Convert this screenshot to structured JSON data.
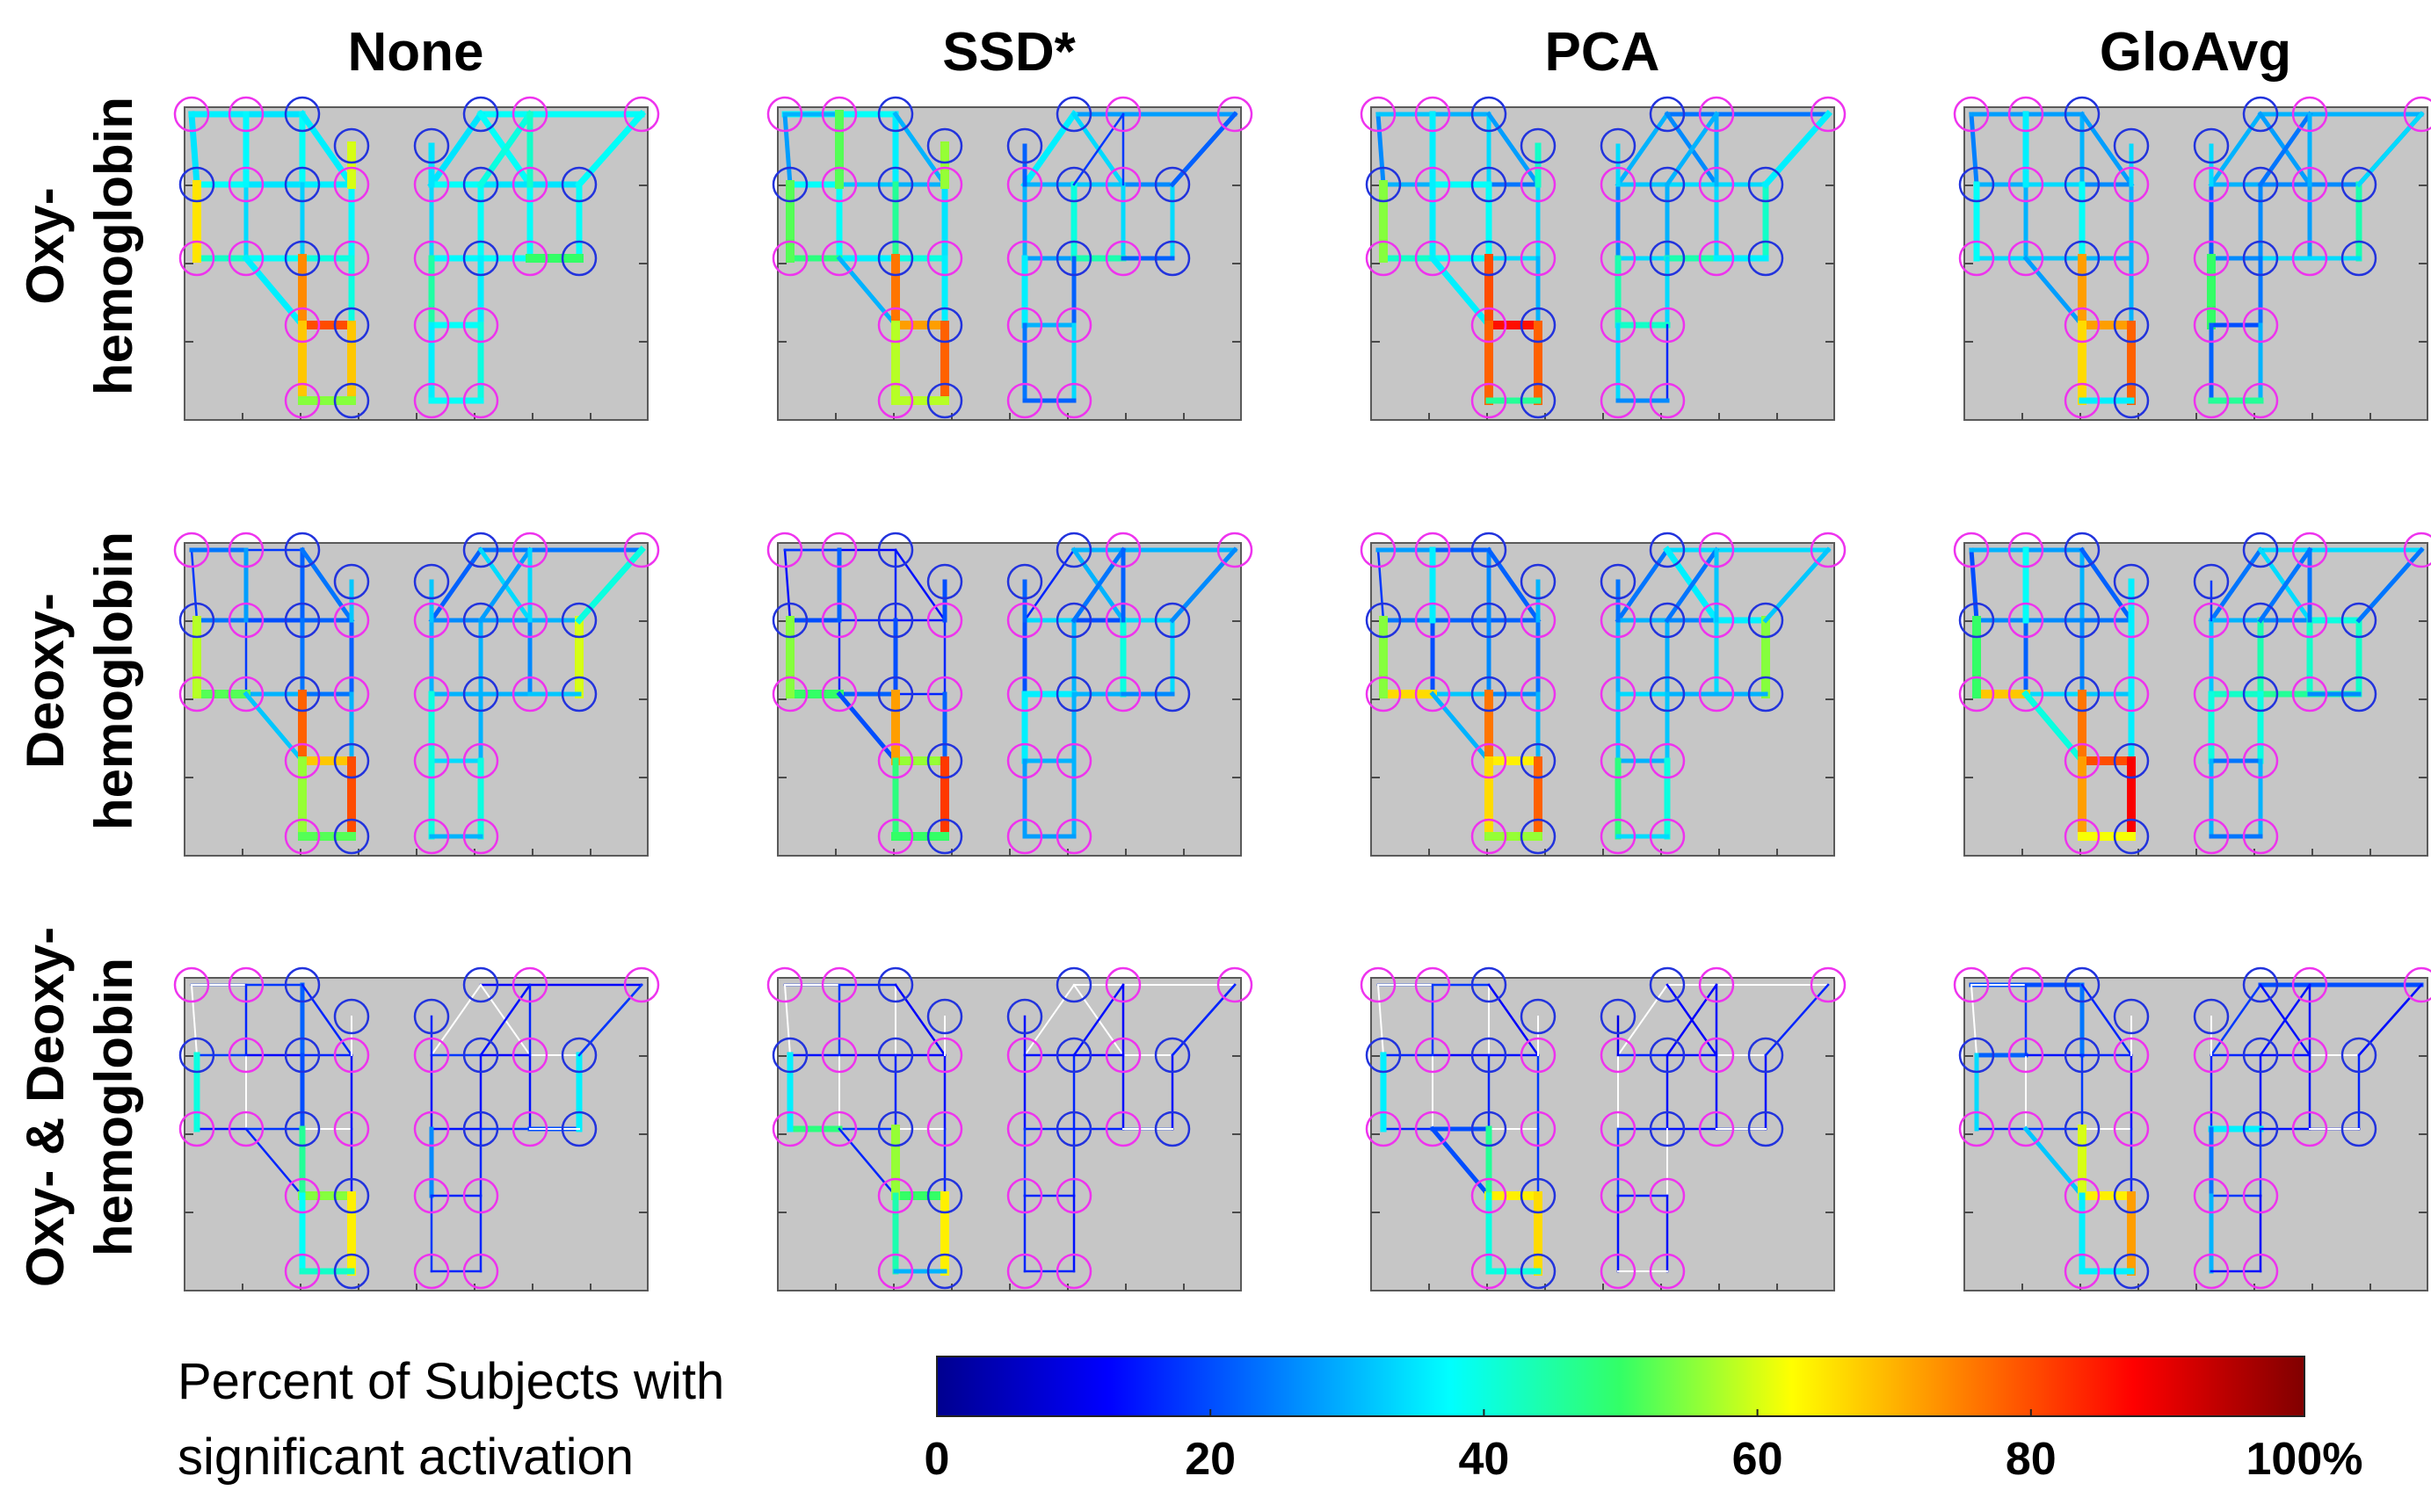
{
  "figure": {
    "columns": [
      "None",
      "SSD*",
      "PCA",
      "GloAvg"
    ],
    "rows": [
      {
        "line1": "Oxy-",
        "line2": "hemoglobin"
      },
      {
        "line1": "Deoxy-",
        "line2": "hemoglobin"
      },
      {
        "line1": "Oxy- & Deoxy-",
        "line2": "hemoglobin"
      }
    ]
  },
  "colorbar": {
    "title_line1": "Percent of Subjects with",
    "title_line2": "significant activation",
    "ticks": [
      "0",
      "20",
      "40",
      "60",
      "80",
      "100%"
    ],
    "tick_values": [
      0,
      20,
      40,
      60,
      80,
      100
    ],
    "colormap": "jet"
  },
  "colors": {
    "source_optode": "#ee33ee",
    "detector_optode": "#2233dd",
    "panel_background": "#c6c6c6",
    "zero_activation": "#ffffff"
  },
  "chart_data": {
    "type": "heatmap",
    "description": "fNIRS channel activation maps; each channel value is percent of subjects with significant activation",
    "value_range": [
      0,
      100
    ],
    "panels": [
      {
        "row": "Oxy-hemoglobin",
        "method": "None",
        "channels": {
          "L0": 35,
          "L1": 38,
          "L2": 36,
          "L3": 35,
          "L4": 38,
          "L5": 35,
          "L6": 36,
          "L7": 34,
          "L8": 33,
          "L9": 37,
          "L10": 38,
          "L11": 40,
          "L12": 36,
          "L13": 42,
          "L14": 36,
          "L15": 37,
          "L16": 40,
          "L17": 36,
          "L18": 80,
          "L19": 74,
          "L20": 68,
          "L21": 68,
          "L22": 55,
          "L23": 65,
          "L24": 60,
          "R0": 38,
          "R1": 35,
          "R2": 38,
          "R3": 38,
          "R4": 35,
          "R5": 35,
          "R6": 34,
          "R7": 38,
          "R8": 38,
          "R9": 36,
          "R10": 37,
          "R11": 38,
          "R12": 40,
          "R13": 38,
          "R14": 45,
          "R15": 36,
          "R16": 38,
          "R17": 36,
          "R18": 40,
          "R19": 38,
          "R20": 40,
          "R21": 50,
          "R22": 35,
          "R23": 38,
          "R24": 42
        }
      },
      {
        "row": "Oxy-hemoglobin",
        "method": "SSD*",
        "channels": {
          "L0": 38,
          "L1": 36,
          "L2": 30,
          "L3": 28,
          "L4": 38,
          "L5": 32,
          "L6": 30,
          "L7": 38,
          "L8": 46,
          "L9": 35,
          "L10": 36,
          "L11": 40,
          "L12": 42,
          "L13": 48,
          "L14": 30,
          "L15": 52,
          "L16": 36,
          "L17": 30,
          "L18": 72,
          "L19": 76,
          "L20": 58,
          "L21": 78,
          "L22": 58,
          "L23": 52,
          "L24": 56,
          "R0": 28,
          "R1": 36,
          "R2": 34,
          "R3": 30,
          "R4": 32,
          "R5": 26,
          "R6": 30,
          "R7": 40,
          "R8": 34,
          "R9": 22,
          "R10": 28,
          "R11": 44,
          "R12": 26,
          "R13": 34,
          "R14": 36,
          "R15": 22,
          "R16": 30,
          "R17": 24,
          "R18": 34,
          "R19": 22,
          "R20": 18,
          "R21": 22,
          "R22": 22,
          "R23": 22,
          "R24": 18
        }
      },
      {
        "row": "Oxy-hemoglobin",
        "method": "PCA",
        "channels": {
          "L0": 30,
          "L1": 34,
          "L2": 28,
          "L3": 26,
          "L4": 30,
          "L5": 38,
          "L6": 24,
          "L7": 36,
          "L8": 38,
          "L9": 34,
          "L10": 38,
          "L11": 34,
          "L12": 40,
          "L13": 42,
          "L14": 32,
          "L15": 36,
          "L16": 30,
          "L17": 36,
          "L18": 86,
          "L19": 80,
          "L20": 78,
          "L21": 78,
          "L22": 46,
          "L23": 55,
          "L24": 42,
          "R0": 24,
          "R1": 30,
          "R2": 26,
          "R3": 32,
          "R4": 34,
          "R5": 34,
          "R6": 26,
          "R7": 30,
          "R8": 34,
          "R9": 28,
          "R10": 34,
          "R11": 44,
          "R12": 30,
          "R13": 42,
          "R14": 44,
          "R15": 34,
          "R16": 42,
          "R17": 34,
          "R18": 16,
          "R19": 26,
          "R20": 30,
          "R21": 36,
          "R22": 34,
          "R23": 36,
          "R24": 30
        }
      },
      {
        "row": "Oxy-hemoglobin",
        "method": "GloAvg",
        "channels": {
          "L0": 28,
          "L1": 30,
          "L2": 28,
          "L3": 25,
          "L4": 30,
          "L5": 34,
          "L6": 26,
          "L7": 30,
          "L8": 38,
          "L9": 30,
          "L10": 32,
          "L11": 30,
          "L12": 36,
          "L13": 34,
          "L14": 28,
          "L15": 36,
          "L16": 30,
          "L17": 28,
          "L18": 72,
          "L19": 72,
          "L20": 66,
          "L21": 78,
          "L22": 36,
          "L23": 38,
          "L24": 34,
          "R0": 30,
          "R1": 30,
          "R2": 28,
          "R3": 30,
          "R4": 26,
          "R5": 26,
          "R6": 22,
          "R7": 26,
          "R8": 28,
          "R9": 20,
          "R10": 26,
          "R11": 34,
          "R12": 20,
          "R13": 44,
          "R14": 50,
          "R15": 24,
          "R16": 20,
          "R17": 22,
          "R18": 30,
          "R19": 46,
          "R20": 24,
          "R21": 34,
          "R22": 34,
          "R23": 34,
          "R24": 30
        }
      },
      {
        "row": "Deoxy-hemoglobin",
        "method": "None",
        "channels": {
          "L0": 18,
          "L1": 22,
          "L2": 24,
          "L3": 18,
          "L4": 24,
          "L5": 20,
          "L6": 22,
          "L7": 18,
          "L8": 24,
          "L9": 22,
          "L10": 30,
          "L11": 24,
          "L12": 30,
          "L13": 52,
          "L14": 24,
          "L15": 28,
          "L16": 30,
          "L17": 32,
          "L18": 68,
          "L19": 78,
          "L20": 56,
          "L21": 80,
          "L22": 52,
          "L23": 58,
          "L24": 32,
          "R0": 24,
          "R1": 22,
          "R2": 34,
          "R3": 26,
          "R4": 28,
          "R5": 30,
          "R6": 30,
          "R7": 30,
          "R8": 26,
          "R9": 30,
          "R10": 30,
          "R11": 30,
          "R12": 30,
          "R13": 60,
          "R14": 40,
          "R15": 30,
          "R16": 34,
          "R17": 40,
          "R18": 40,
          "R19": 30,
          "R20": 28,
          "R21": 32,
          "R22": 32,
          "R23": 40,
          "R24": 34
        }
      },
      {
        "row": "Deoxy-hemoglobin",
        "method": "SSD*",
        "channels": {
          "L0": 12,
          "L1": 16,
          "L2": 14,
          "L3": 14,
          "L4": 20,
          "L5": 16,
          "L6": 14,
          "L7": 16,
          "L8": 20,
          "L9": 16,
          "L10": 22,
          "L11": 16,
          "L12": 24,
          "L13": 50,
          "L14": 18,
          "L15": 22,
          "L16": 22,
          "L17": 20,
          "L18": 56,
          "L19": 72,
          "L20": 48,
          "L21": 82,
          "L22": 50,
          "L23": 55,
          "L24": 20,
          "R0": 30,
          "R1": 16,
          "R2": 30,
          "R3": 34,
          "R4": 20,
          "R5": 34,
          "R6": 20,
          "R7": 30,
          "R8": 40,
          "R9": 30,
          "R10": 36,
          "R11": 30,
          "R12": 34,
          "R13": 34,
          "R14": 36,
          "R15": 30,
          "R16": 30,
          "R17": 28,
          "R18": 30,
          "R19": 28,
          "R20": 24,
          "R21": 26,
          "R22": 22,
          "R23": 26,
          "R24": 22
        }
      },
      {
        "row": "Deoxy-hemoglobin",
        "method": "PCA",
        "channels": {
          "L0": 22,
          "L1": 26,
          "L2": 22,
          "L3": 18,
          "L4": 24,
          "L5": 22,
          "L6": 22,
          "L7": 20,
          "L8": 26,
          "L9": 24,
          "L10": 32,
          "L11": 26,
          "L12": 30,
          "L13": 66,
          "L14": 28,
          "L15": 36,
          "L16": 30,
          "L17": 30,
          "L18": 64,
          "L19": 76,
          "L20": 66,
          "L21": 78,
          "L22": 56,
          "L23": 55,
          "L24": 30,
          "R0": 34,
          "R1": 24,
          "R2": 36,
          "R3": 30,
          "R4": 26,
          "R5": 36,
          "R6": 30,
          "R7": 30,
          "R8": 34,
          "R9": 30,
          "R10": 34,
          "R11": 30,
          "R12": 30,
          "R13": 55,
          "R14": 32,
          "R15": 32,
          "R16": 30,
          "R17": 48,
          "R18": 40,
          "R19": 34,
          "R20": 24,
          "R21": 30,
          "R22": 24,
          "R23": 32,
          "R24": 32
        }
      },
      {
        "row": "Deoxy-hemoglobin",
        "method": "GloAvg",
        "channels": {
          "L0": 28,
          "L1": 30,
          "L2": 22,
          "L3": 20,
          "L4": 26,
          "L5": 26,
          "L6": 24,
          "L7": 22,
          "L8": 26,
          "L9": 36,
          "L10": 34,
          "L11": 32,
          "L12": 36,
          "L13": 68,
          "L14": 30,
          "L15": 38,
          "L16": 36,
          "L17": 40,
          "L18": 80,
          "L19": 76,
          "L20": 72,
          "L21": 88,
          "L22": 62,
          "L23": 50,
          "L24": 36,
          "R0": 34,
          "R1": 24,
          "R2": 34,
          "R3": 30,
          "R4": 26,
          "R5": 40,
          "R6": 32,
          "R7": 44,
          "R8": 42,
          "R9": 30,
          "R10": 42,
          "R11": 46,
          "R12": 44,
          "R13": 42,
          "R14": 40,
          "R15": 40,
          "R16": 24,
          "R17": 30,
          "R18": 30,
          "R19": 24,
          "R20": 24,
          "R21": 26,
          "R22": 18,
          "R23": 24,
          "R24": 24
        }
      },
      {
        "row": "Oxy- & Deoxy-hemoglobin",
        "method": "None",
        "channels": {
          "L0": 18,
          "L1": 22,
          "L2": 16,
          "L3": 0,
          "L4": 18,
          "L5": 12,
          "L6": 16,
          "L7": 0,
          "L8": 20,
          "L9": 14,
          "L10": 18,
          "L11": 0,
          "L12": 16,
          "L13": 14,
          "L14": 0,
          "L15": 16,
          "L16": 14,
          "L17": 16,
          "L18": 55,
          "L19": 46,
          "L20": 38,
          "L21": 64,
          "L22": 42,
          "L23": 40,
          "L24": 0,
          "R0": 12,
          "R1": 0,
          "R2": 0,
          "R3": 18,
          "R4": 12,
          "R5": 0,
          "R6": 14,
          "R7": 14,
          "R8": 14,
          "R9": 12,
          "R10": 14,
          "R11": 18,
          "R12": 20,
          "R13": 36,
          "R14": 26,
          "R15": 16,
          "R16": 16,
          "R17": 18,
          "R18": 16,
          "R19": 16,
          "R20": 14,
          "R21": 0,
          "R22": 16,
          "R23": 18,
          "R24": 16
        }
      },
      {
        "row": "Oxy- & Deoxy-hemoglobin",
        "method": "SSD*",
        "channels": {
          "L0": 16,
          "L1": 0,
          "L2": 12,
          "L3": 0,
          "L4": 14,
          "L5": 12,
          "L6": 12,
          "L7": 0,
          "L8": 16,
          "L9": 14,
          "L10": 18,
          "L11": 0,
          "L12": 16,
          "L13": 48,
          "L14": 0,
          "L15": 18,
          "L16": 16,
          "L17": 16,
          "L18": 50,
          "L19": 56,
          "L20": 44,
          "L21": 64,
          "L22": 30,
          "L23": 36,
          "L24": 0,
          "R0": 0,
          "R1": 0,
          "R2": 0,
          "R3": 14,
          "R4": 12,
          "R5": 0,
          "R6": 14,
          "R7": 16,
          "R8": 14,
          "R9": 12,
          "R10": 16,
          "R11": 16,
          "R12": 18,
          "R13": 14,
          "R14": 18,
          "R15": 16,
          "R16": 16,
          "R17": 16,
          "R18": 14,
          "R19": 16,
          "R20": 14,
          "R21": 0,
          "R22": 14,
          "R23": 16,
          "R24": 12
        }
      },
      {
        "row": "Oxy- & Deoxy-hemoglobin",
        "method": "PCA",
        "channels": {
          "L0": 18,
          "L1": 0,
          "L2": 12,
          "L3": 0,
          "L4": 16,
          "L5": 12,
          "L6": 14,
          "L7": 0,
          "L8": 16,
          "L9": 18,
          "L10": 20,
          "L11": 0,
          "L12": 16,
          "L13": 16,
          "L14": 0,
          "L15": 18,
          "L16": 18,
          "L17": 20,
          "L18": 64,
          "L19": 46,
          "L20": 40,
          "L21": 66,
          "L22": 40,
          "L23": 36,
          "L24": 0,
          "R0": 0,
          "R1": 0,
          "R2": 12,
          "R3": 16,
          "R4": 14,
          "R5": 0,
          "R6": 0,
          "R7": 14,
          "R8": 14,
          "R9": 0,
          "R10": 16,
          "R11": 14,
          "R12": 16,
          "R13": 14,
          "R14": 18,
          "R15": 0,
          "R16": 16,
          "R17": 14,
          "R18": 14,
          "R19": 0,
          "R20": 12,
          "R21": 0,
          "R22": 10,
          "R23": 16,
          "R24": 14
        }
      },
      {
        "row": "Oxy- & Deoxy-hemoglobin",
        "method": "GloAvg",
        "channels": {
          "L0": 20,
          "L1": 24,
          "L2": 16,
          "L3": 0,
          "L4": 22,
          "L5": 14,
          "L6": 16,
          "L7": 0,
          "L8": 18,
          "L9": 14,
          "L10": 18,
          "L11": 0,
          "L12": 18,
          "L13": 16,
          "L14": 0,
          "L15": 18,
          "L16": 16,
          "L17": 32,
          "L18": 64,
          "L19": 60,
          "L20": 36,
          "L21": 72,
          "L22": 36,
          "L23": 34,
          "L24": 0,
          "R0": 20,
          "R1": 18,
          "R2": 14,
          "R3": 16,
          "R4": 14,
          "R5": 0,
          "R6": 16,
          "R7": 14,
          "R8": 14,
          "R9": 14,
          "R10": 36,
          "R11": 14,
          "R12": 14,
          "R13": 16,
          "R14": 24,
          "R15": 18,
          "R16": 18,
          "R17": 30,
          "R18": 12,
          "R19": 14,
          "R20": 14,
          "R21": 0,
          "R22": 0,
          "R23": 14,
          "R24": 14
        }
      }
    ]
  }
}
